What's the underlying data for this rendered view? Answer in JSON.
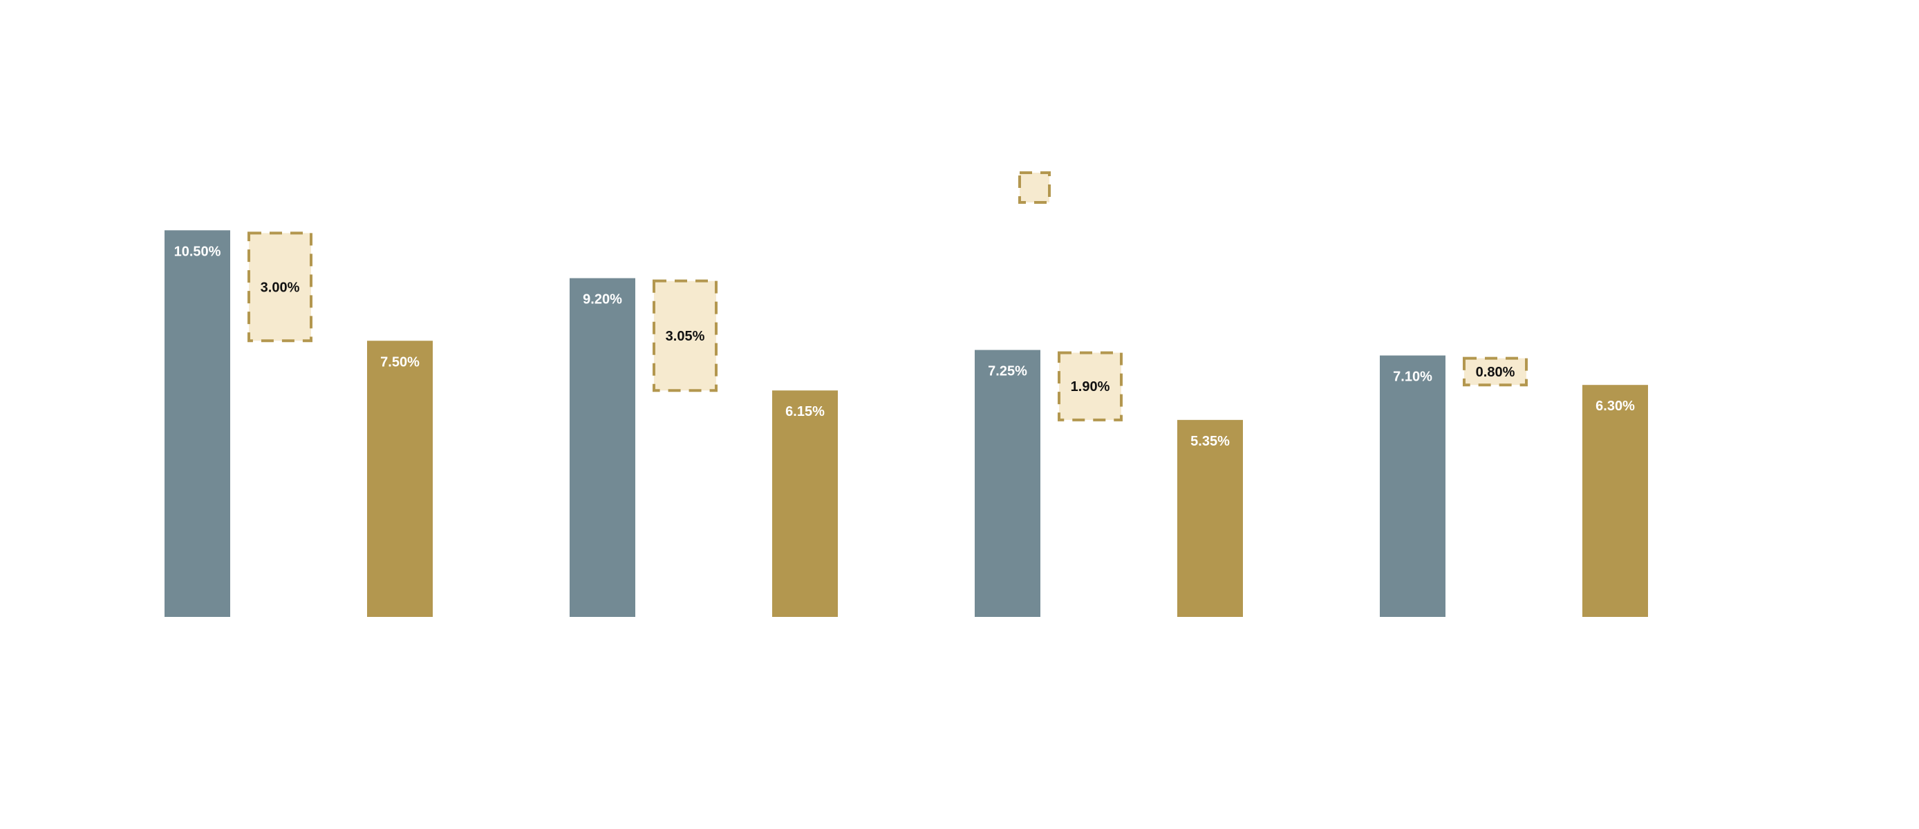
{
  "chart_data": {
    "type": "bar",
    "categories": [
      "",
      "",
      "",
      ""
    ],
    "series": [
      {
        "values": [
          10.5,
          9.2,
          7.25,
          7.1
        ],
        "labels": [
          "10.50%",
          "9.20%",
          "7.25%",
          "7.10%"
        ],
        "color": "#738a94"
      },
      {
        "values": [
          7.5,
          6.15,
          5.35,
          6.3
        ],
        "labels": [
          "7.50%",
          "6.15%",
          "5.35%",
          "6.30%"
        ],
        "color": "#b3974f"
      }
    ],
    "differences": {
      "values": [
        3.0,
        3.05,
        1.9,
        0.8
      ],
      "labels": [
        "3.00%",
        "3.05%",
        "1.90%",
        "0.80%"
      ],
      "fill": "#f6eacf",
      "stroke": "#b3974f"
    },
    "legend_marker": {
      "fill": "#f6eacf",
      "stroke": "#b3974f"
    },
    "title": "",
    "xlabel": "",
    "ylabel": "",
    "ylim": [
      0,
      12
    ],
    "grid": false
  }
}
